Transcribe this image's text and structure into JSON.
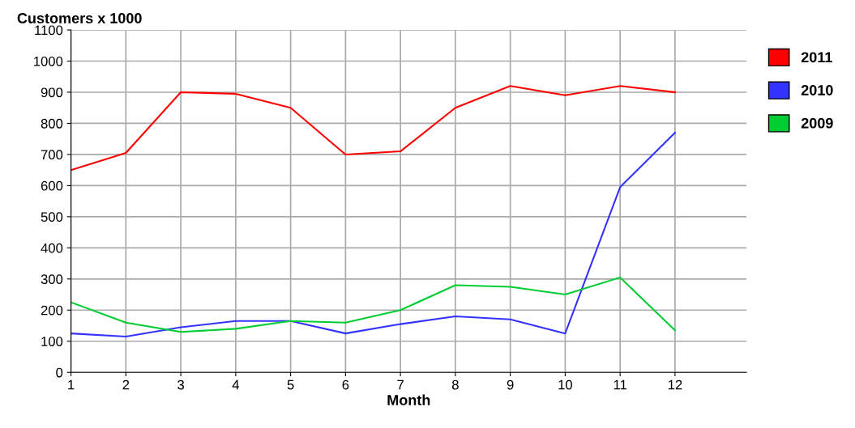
{
  "chart_data": {
    "type": "line",
    "title": "Customers x 1000",
    "xlabel": "Month",
    "x": [
      1,
      2,
      3,
      4,
      5,
      6,
      7,
      8,
      9,
      10,
      11,
      12
    ],
    "series": [
      {
        "name": "2011",
        "color": "#ff0000",
        "values": [
          650,
          705,
          900,
          895,
          850,
          700,
          710,
          850,
          920,
          890,
          920,
          900
        ]
      },
      {
        "name": "2010",
        "color": "#3333ff",
        "values": [
          125,
          115,
          145,
          165,
          165,
          125,
          155,
          180,
          170,
          125,
          595,
          770
        ]
      },
      {
        "name": "2009",
        "color": "#00cc33",
        "values": [
          225,
          160,
          130,
          140,
          165,
          160,
          200,
          280,
          275,
          250,
          305,
          135
        ]
      }
    ],
    "xlim": [
      1,
      13.3
    ],
    "xticks": [
      1,
      2,
      3,
      4,
      5,
      6,
      7,
      8,
      9,
      10,
      11,
      12
    ],
    "ylim": [
      0,
      1100
    ],
    "yticks": [
      0,
      100,
      200,
      300,
      400,
      500,
      600,
      700,
      800,
      900,
      1000,
      1100
    ],
    "grid": true,
    "legend": "right",
    "marker": "none",
    "line_style": "solid"
  }
}
